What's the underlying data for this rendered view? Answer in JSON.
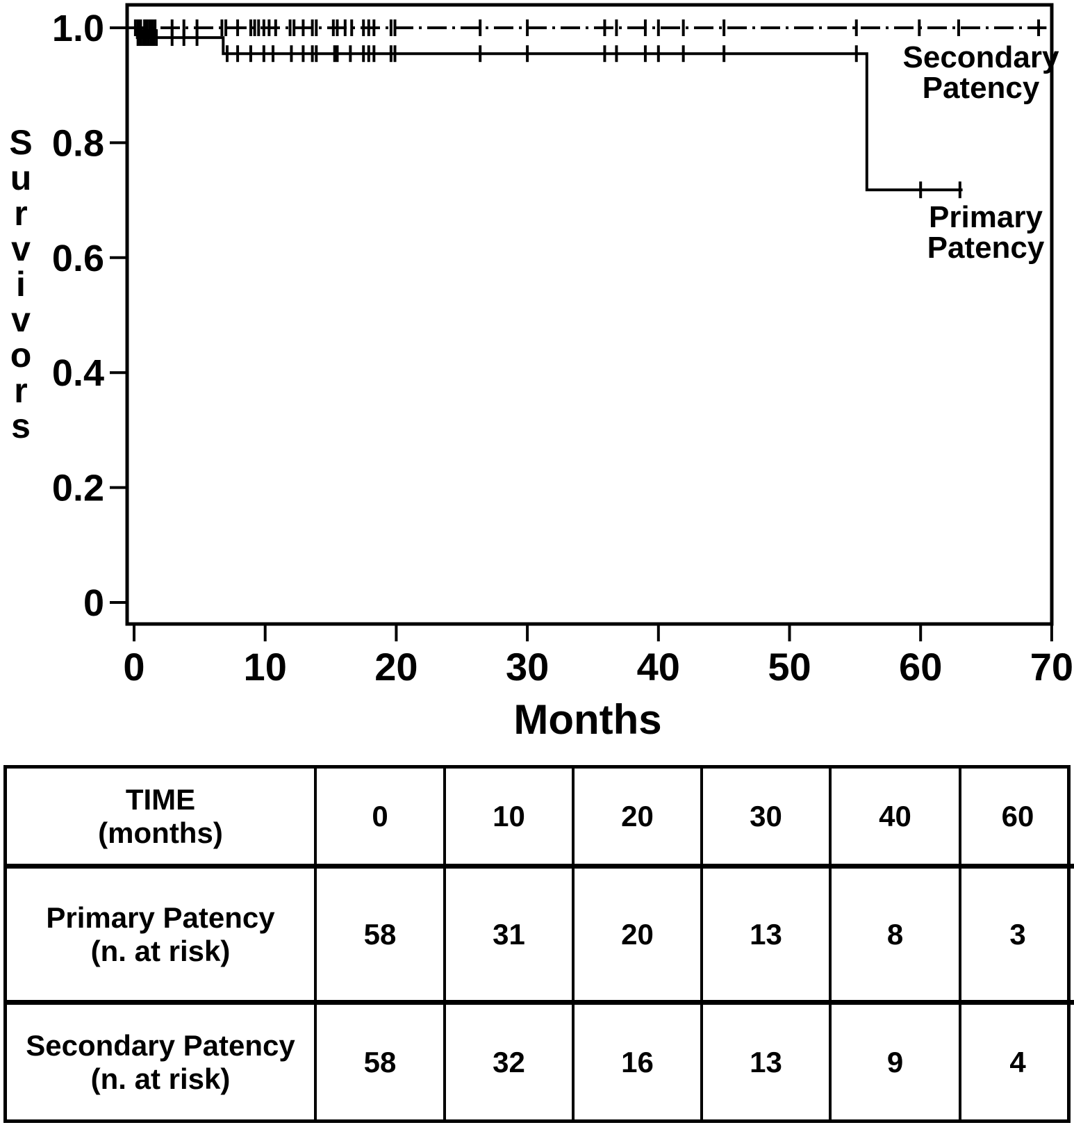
{
  "figure": {
    "background_color": "#ffffff",
    "ink_color": "#000000"
  },
  "chart_data": {
    "type": "line",
    "subtype": "kaplan-meier-step",
    "title": "",
    "xlabel": "Months",
    "ylabel": "Survivors",
    "x_ticks": [
      "0",
      "10",
      "20",
      "30",
      "40",
      "50",
      "60",
      "70"
    ],
    "x_tick_values": [
      0,
      10,
      20,
      30,
      40,
      50,
      60,
      70
    ],
    "y_ticks": [
      "1.0",
      "0.8",
      "0.6",
      "0.4",
      "0.2",
      "0"
    ],
    "y_tick_values": [
      1.0,
      0.8,
      0.6,
      0.4,
      0.2,
      0
    ],
    "xlim": [
      -0.6,
      70
    ],
    "ylim": [
      -0.04,
      1.04
    ],
    "grid": false,
    "legend_position": "annotations-right",
    "series": [
      {
        "name": "Secondary Patency",
        "label_lines": [
          "Secondary",
          "Patency"
        ],
        "line_style": "dash-dot",
        "steps": [
          {
            "x": 0,
            "y": 1.0
          }
        ],
        "end_x": 69.6,
        "censor_marks_x": [
          0.1,
          0.3,
          0.5,
          0.8,
          1.0,
          1.2,
          1.4,
          1.6,
          2.9,
          3.8,
          4.8,
          6.7,
          7.0,
          7.9,
          8.9,
          9.2,
          9.5,
          9.9,
          10.3,
          10.8,
          11.9,
          12.2,
          12.9,
          13.6,
          13.9,
          15.2,
          15.5,
          16.1,
          16.6,
          17.5,
          17.9,
          18.3,
          19.6,
          19.9,
          26.4,
          30.0,
          35.9,
          36.8,
          39.0,
          40.0,
          41.9,
          45.0,
          55.1,
          59.9,
          62.9,
          69.0
        ]
      },
      {
        "name": "Primary Patency",
        "label_lines": [
          "Primary",
          "Patency"
        ],
        "line_style": "solid",
        "steps": [
          {
            "x": 0,
            "y": 1.0
          },
          {
            "x": 0.25,
            "y": 0.983
          },
          {
            "x": 6.8,
            "y": 0.955
          },
          {
            "x": 55.9,
            "y": 0.718
          }
        ],
        "end_x": 63.2,
        "censor_marks_x": [
          0.3,
          0.5,
          0.7,
          0.9,
          1.1,
          1.3,
          1.5,
          1.7,
          2.9,
          3.8,
          4.8,
          7.1,
          7.9,
          8.9,
          9.9,
          10.6,
          12.0,
          12.9,
          13.6,
          13.9,
          15.3,
          15.5,
          16.5,
          17.5,
          17.9,
          18.3,
          19.6,
          19.9,
          26.4,
          30.0,
          35.9,
          36.8,
          39.0,
          40.0,
          41.9,
          45.0,
          55.1,
          60.0,
          63.0
        ]
      }
    ]
  },
  "risk_table": {
    "header_label_lines": [
      "TIME",
      "(months)"
    ],
    "time_points": [
      "0",
      "10",
      "20",
      "30",
      "40",
      "60"
    ],
    "rows": [
      {
        "label_lines": [
          "Primary Patency",
          "(n. at risk)"
        ],
        "values": [
          "58",
          "31",
          "20",
          "13",
          "8",
          "3"
        ]
      },
      {
        "label_lines": [
          "Secondary Patency",
          "(n. at risk)"
        ],
        "values": [
          "58",
          "32",
          "16",
          "13",
          "9",
          "4"
        ]
      }
    ]
  }
}
